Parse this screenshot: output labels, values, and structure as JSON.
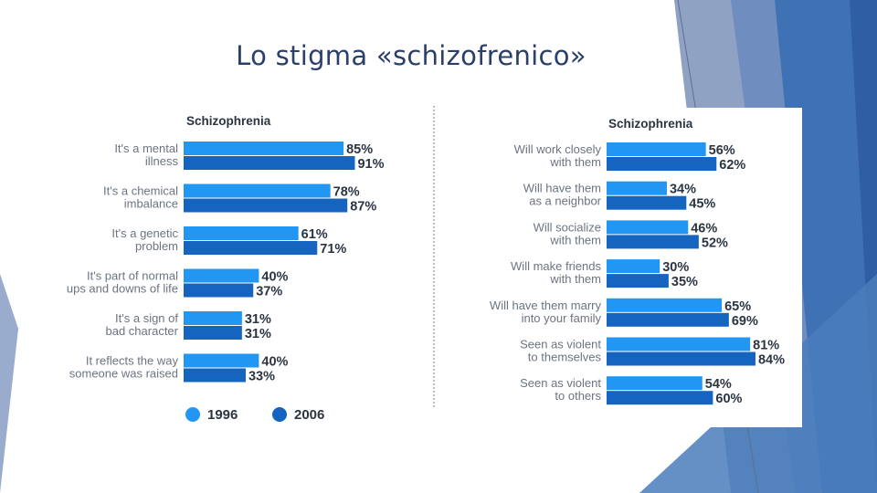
{
  "slide": {
    "title": "Lo stigma «schizofrenico»",
    "colors": {
      "title": "#2a3f6a",
      "bar_1996": "#2196f3",
      "bar_2006": "#1565c0",
      "deco_light": "#8fa2c3",
      "deco_dark": "#3a6fb2"
    }
  },
  "chart_data": [
    {
      "type": "bar",
      "orientation": "horizontal",
      "title": "Schizophrenia",
      "categories": [
        "It's a mental illness",
        "It's a chemical imbalance",
        "It's a genetic problem",
        "It's part of normal ups and downs of life",
        "It's a sign of bad character",
        "It reflects the way someone was raised"
      ],
      "category_lines": [
        [
          "It's a mental",
          "illness"
        ],
        [
          "It's a chemical",
          "imbalance"
        ],
        [
          "It's a genetic",
          "problem"
        ],
        [
          "It's part of normal",
          "ups and downs of life"
        ],
        [
          "It's a sign of",
          "bad character"
        ],
        [
          "It reflects the way",
          "someone was raised"
        ]
      ],
      "series": [
        {
          "name": "1996",
          "values": [
            85,
            78,
            61,
            40,
            31,
            40
          ],
          "color": "#2196f3"
        },
        {
          "name": "2006",
          "values": [
            91,
            87,
            71,
            37,
            31,
            33
          ],
          "color": "#1565c0"
        }
      ],
      "value_labels": [
        [
          "85%",
          "91%"
        ],
        [
          "78%",
          "87%"
        ],
        [
          "61%",
          "71%"
        ],
        [
          "40%",
          "37%"
        ],
        [
          "31%",
          "31%"
        ],
        [
          "40%",
          "33%"
        ]
      ],
      "xlim": [
        0,
        100
      ],
      "legend": {
        "position": "bottom-left",
        "items": [
          "1996",
          "2006"
        ]
      }
    },
    {
      "type": "bar",
      "orientation": "horizontal",
      "title": "Schizophrenia",
      "categories": [
        "Will work closely with them",
        "Will have them as a neighbor",
        "Will socialize with them",
        "Will make friends with them",
        "Will have them marry into your family",
        "Seen as violent to themselves",
        "Seen as violent to others"
      ],
      "category_lines": [
        [
          "Will work closely",
          "with them"
        ],
        [
          "Will have them",
          "as a neighbor"
        ],
        [
          "Will socialize",
          "with them"
        ],
        [
          "Will make friends",
          "with them"
        ],
        [
          "Will have them marry",
          "into your family"
        ],
        [
          "Seen as violent",
          "to themselves"
        ],
        [
          "Seen as violent",
          "to others"
        ]
      ],
      "series": [
        {
          "name": "1996",
          "values": [
            56,
            34,
            46,
            30,
            65,
            81,
            54
          ],
          "color": "#2196f3"
        },
        {
          "name": "2006",
          "values": [
            62,
            45,
            52,
            35,
            69,
            84,
            60
          ],
          "color": "#1565c0"
        }
      ],
      "value_labels": [
        [
          "56%",
          "62%"
        ],
        [
          "34%",
          "45%"
        ],
        [
          "46%",
          "52%"
        ],
        [
          "30%",
          "35%"
        ],
        [
          "65%",
          "69%"
        ],
        [
          "81%",
          "84%"
        ],
        [
          "54%",
          "60%"
        ]
      ],
      "xlim": [
        0,
        100
      ]
    }
  ]
}
